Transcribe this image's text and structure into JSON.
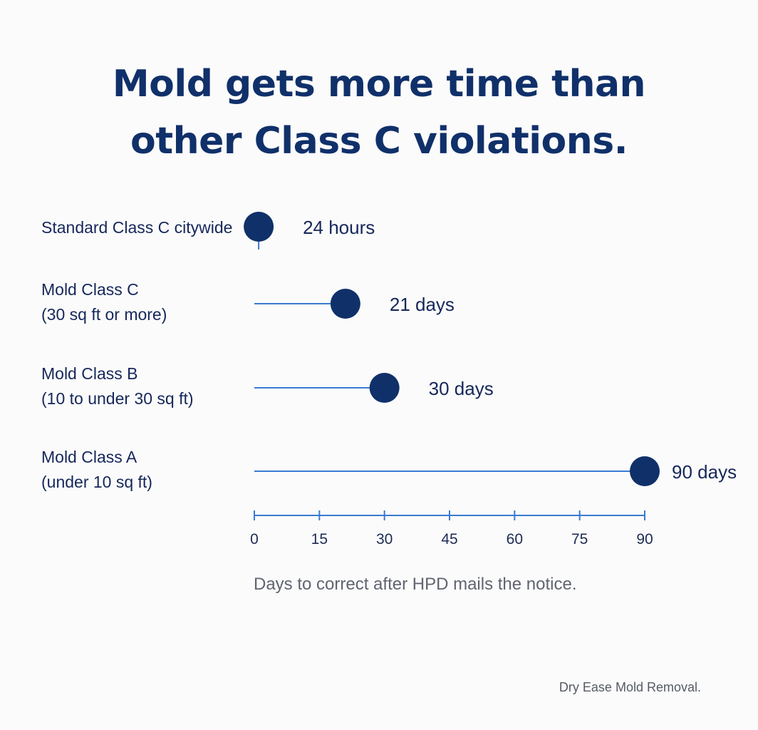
{
  "chart_data": {
    "type": "dot",
    "title_lines": [
      "Mold gets more time than",
      "other Class C violations."
    ],
    "xlabel": "Days to correct after HPD mails the notice.",
    "xlim": [
      0,
      90
    ],
    "xticks": [
      0,
      15,
      30,
      45,
      60,
      75,
      90
    ],
    "xtick_labels": [
      "0",
      "15",
      "30",
      "45",
      "60",
      "75",
      "90"
    ],
    "grid": false,
    "rows": [
      {
        "label_lines": [
          "Standard Class C citywide"
        ],
        "value": 1,
        "value_label": "24 hours"
      },
      {
        "label_lines": [
          "Mold Class C",
          "(30 sq ft or more)"
        ],
        "value": 21,
        "value_label": "21 days"
      },
      {
        "label_lines": [
          "Mold Class B",
          "(10 to under 30 sq ft)"
        ],
        "value": 30,
        "value_label": "30 days"
      },
      {
        "label_lines": [
          "Mold Class A",
          "(under 10 sq ft)"
        ],
        "value": 90,
        "value_label": "90 days"
      }
    ],
    "colors": {
      "dot": "#10306a",
      "line": "#3a7bd0",
      "axis": "#3a7bd0"
    }
  },
  "footer": {
    "credit": "Dry Ease Mold Removal."
  }
}
